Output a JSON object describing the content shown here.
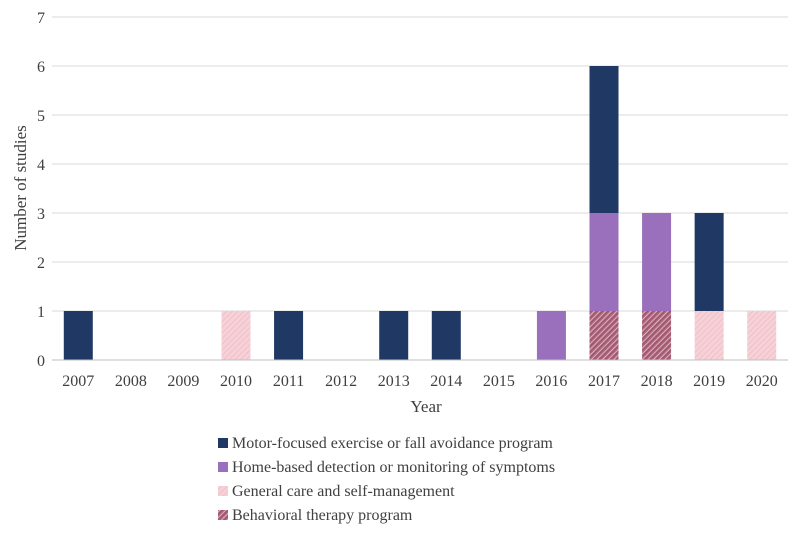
{
  "chart_data": {
    "type": "bar",
    "stacked": true,
    "title": "",
    "xlabel": "Year",
    "ylabel": "Number of studies",
    "ylim": [
      0,
      7
    ],
    "yticks": [
      0,
      1,
      2,
      3,
      4,
      5,
      6,
      7
    ],
    "grid": true,
    "legend_position": "bottom",
    "categories": [
      "2007",
      "2008",
      "2009",
      "2010",
      "2011",
      "2012",
      "2013",
      "2014",
      "2015",
      "2016",
      "2017",
      "2018",
      "2019",
      "2020"
    ],
    "series": [
      {
        "name": "Behavioral therapy program",
        "values": [
          0,
          0,
          0,
          0,
          0,
          0,
          0,
          0,
          0,
          0,
          1,
          1,
          0,
          0
        ]
      },
      {
        "name": "General care and self-management",
        "values": [
          0,
          0,
          0,
          1,
          0,
          0,
          0,
          0,
          0,
          0,
          0,
          0,
          1,
          1
        ]
      },
      {
        "name": "Home-based detection or monitoring of symptoms",
        "values": [
          0,
          0,
          0,
          0,
          0,
          0,
          0,
          0,
          0,
          1,
          2,
          2,
          0,
          0
        ]
      },
      {
        "name": "Motor-focused exercise or fall avoidance program",
        "values": [
          1,
          0,
          0,
          0,
          1,
          0,
          1,
          1,
          0,
          0,
          3,
          0,
          2,
          0
        ]
      }
    ],
    "legend_order": [
      3,
      2,
      1,
      0
    ]
  },
  "colors": {
    "motor": "#1f3864",
    "home": "#9a6fbb",
    "general": "#f6d2d8",
    "general_hatch": "#eeb9c2",
    "behavioral": "#b0687f",
    "behavioral_hatch": "#f3d6dc",
    "grid": "#d9d9d9",
    "axis": "#bfbfbf"
  }
}
